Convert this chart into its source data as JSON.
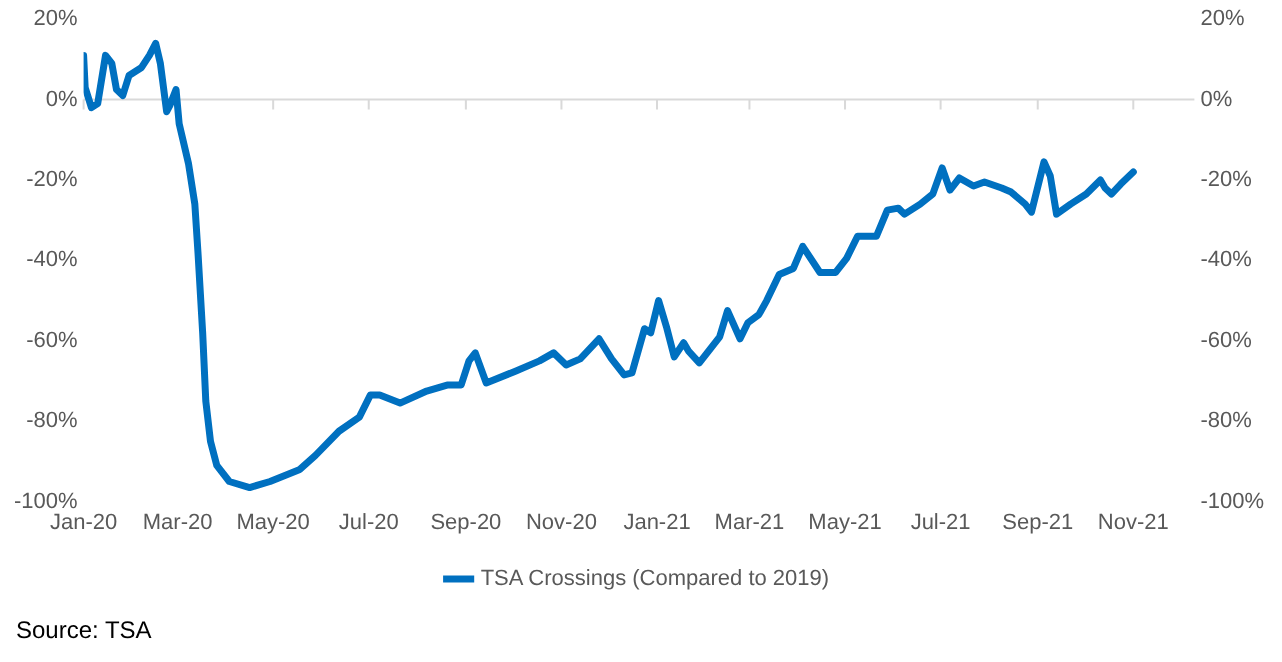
{
  "chart_data": {
    "type": "line",
    "x": [
      "2020-01-01",
      "2020-01-02",
      "2020-01-06",
      "2020-01-10",
      "2020-01-15",
      "2020-01-19",
      "2020-01-22",
      "2020-01-26",
      "2020-01-30",
      "2020-02-07",
      "2020-02-12",
      "2020-02-16",
      "2020-02-19",
      "2020-02-23",
      "2020-02-25",
      "2020-02-29",
      "2020-03-01",
      "2020-03-02",
      "2020-03-08",
      "2020-03-12",
      "2020-03-14",
      "2020-03-17",
      "2020-03-19",
      "2020-03-22",
      "2020-03-26",
      "2020-04-03",
      "2020-04-16",
      "2020-04-29",
      "2020-05-18",
      "2020-05-28",
      "2020-06-12",
      "2020-06-25",
      "2020-07-02",
      "2020-07-08",
      "2020-07-21",
      "2020-08-07",
      "2020-08-20",
      "2020-08-29",
      "2020-09-03",
      "2020-09-07",
      "2020-09-14",
      "2020-10-03",
      "2020-10-18",
      "2020-10-27",
      "2020-11-04",
      "2020-11-13",
      "2020-11-25",
      "2020-12-03",
      "2020-12-11",
      "2020-12-16",
      "2020-12-24",
      "2020-12-28",
      "2021-01-02",
      "2021-01-07",
      "2021-01-12",
      "2021-01-18",
      "2021-01-21",
      "2021-01-28",
      "2021-02-04",
      "2021-02-10",
      "2021-02-15",
      "2021-02-23",
      "2021-02-28",
      "2021-03-07",
      "2021-03-12",
      "2021-03-20",
      "2021-03-29",
      "2021-04-04",
      "2021-04-15",
      "2021-04-25",
      "2021-05-02",
      "2021-05-09",
      "2021-05-21",
      "2021-05-28",
      "2021-06-04",
      "2021-06-08",
      "2021-06-18",
      "2021-06-26",
      "2021-07-02",
      "2021-07-07",
      "2021-07-13",
      "2021-07-22",
      "2021-07-29",
      "2021-08-09",
      "2021-08-15",
      "2021-08-24",
      "2021-08-28",
      "2021-09-05",
      "2021-09-09",
      "2021-09-13",
      "2021-09-22",
      "2021-10-02",
      "2021-10-11",
      "2021-10-14",
      "2021-10-18",
      "2021-10-24",
      "2021-11-01"
    ],
    "series": [
      {
        "name": "TSA Crossings (Compared to 2019)",
        "color": "#0070c0",
        "values": [
          11,
          3,
          -2,
          -1,
          11,
          9,
          2.5,
          1,
          6,
          8,
          11,
          14,
          9,
          -3,
          -1.5,
          2.5,
          2.5,
          -6,
          -16,
          -26,
          -38,
          -58,
          -75,
          -85,
          -91,
          -95,
          -96.5,
          -95,
          -92,
          -88.5,
          -82.5,
          -79,
          -73.5,
          -73.5,
          -75.5,
          -72.5,
          -71,
          -71,
          -65,
          -63,
          -70.5,
          -67.5,
          -65,
          -63,
          -66,
          -64.5,
          -59.5,
          -64.5,
          -68.5,
          -68,
          -57,
          -58,
          -50,
          -56.5,
          -64,
          -60.5,
          -62.5,
          -65.5,
          -62,
          -59,
          -52.5,
          -59.5,
          -55.5,
          -53.5,
          -50,
          -43.5,
          -42,
          -36.5,
          -43,
          -43,
          -39.5,
          -34,
          -34,
          -27.5,
          -27,
          -28.5,
          -26,
          -23.5,
          -17,
          -22.5,
          -19.5,
          -21.5,
          -20.5,
          -22,
          -23,
          -26,
          -28,
          -15.5,
          -19,
          -28.5,
          -26,
          -23.5,
          -20,
          -22,
          -23.5,
          -21,
          -18
        ]
      }
    ],
    "xlim": [
      "2020-01-01",
      "2021-12-10"
    ],
    "xticks": [
      {
        "value": "2020-01-01",
        "label": "Jan-20"
      },
      {
        "value": "2020-03-01",
        "label": "Mar-20"
      },
      {
        "value": "2020-05-01",
        "label": "May-20"
      },
      {
        "value": "2020-07-01",
        "label": "Jul-20"
      },
      {
        "value": "2020-09-01",
        "label": "Sep-20"
      },
      {
        "value": "2020-11-01",
        "label": "Nov-20"
      },
      {
        "value": "2021-01-01",
        "label": "Jan-21"
      },
      {
        "value": "2021-03-01",
        "label": "Mar-21"
      },
      {
        "value": "2021-05-01",
        "label": "May-21"
      },
      {
        "value": "2021-07-01",
        "label": "Jul-21"
      },
      {
        "value": "2021-09-01",
        "label": "Sep-21"
      },
      {
        "value": "2021-11-01",
        "label": "Nov-21"
      }
    ],
    "ylim": [
      -100,
      20
    ],
    "yticks": [
      {
        "value": -100,
        "label": "-100%"
      },
      {
        "value": -80,
        "label": "-80%"
      },
      {
        "value": -60,
        "label": "-60%"
      },
      {
        "value": -40,
        "label": "-40%"
      },
      {
        "value": -20,
        "label": "-20%"
      },
      {
        "value": 0,
        "label": "0%"
      },
      {
        "value": 20,
        "label": "20%"
      }
    ],
    "y2lim": [
      -100,
      20
    ],
    "y2ticks": [
      {
        "value": -100,
        "label": "-100%"
      },
      {
        "value": -80,
        "label": "-80%"
      },
      {
        "value": -60,
        "label": "-60%"
      },
      {
        "value": -40,
        "label": "-40%"
      },
      {
        "value": -20,
        "label": "-20%"
      },
      {
        "value": 0,
        "label": "0%"
      },
      {
        "value": 20,
        "label": "20%"
      }
    ],
    "legend": "bottom",
    "marker": "none",
    "line_style": "solid",
    "annotations": [
      "Source: TSA"
    ]
  }
}
